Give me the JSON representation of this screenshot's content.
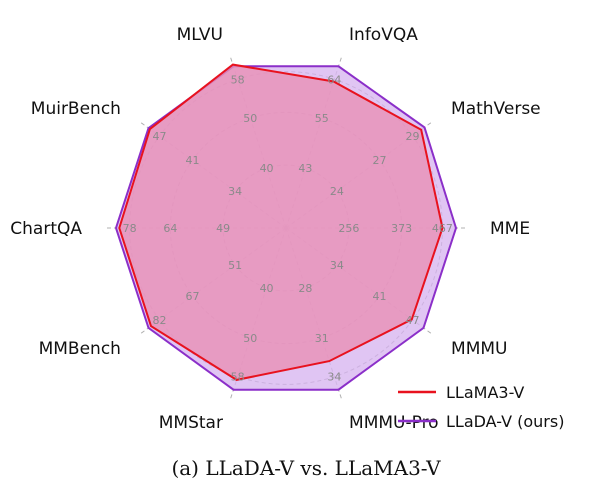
{
  "chart_data": {
    "type": "radar",
    "caption": "(a) LLaDA-V vs. LLaMA3-V",
    "axes": [
      {
        "name": "MME",
        "ticks": [
          "256",
          "373",
          "467"
        ],
        "max": 467
      },
      {
        "name": "MathVerse",
        "ticks": [
          "24",
          "27",
          "29"
        ],
        "max": 29
      },
      {
        "name": "InfoVQA",
        "ticks": [
          "43",
          "55",
          "64"
        ],
        "max": 64
      },
      {
        "name": "MLVU",
        "ticks": [
          "40",
          "50",
          "58"
        ],
        "max": 58
      },
      {
        "name": "MuirBench",
        "ticks": [
          "34",
          "41",
          "47"
        ],
        "max": 47
      },
      {
        "name": "ChartQA",
        "ticks": [
          "49",
          "64",
          "78"
        ],
        "max": 78
      },
      {
        "name": "MMBench",
        "ticks": [
          "51",
          "67",
          "82"
        ],
        "max": 82
      },
      {
        "name": "MMStar",
        "ticks": [
          "40",
          "50",
          "58"
        ],
        "max": 58
      },
      {
        "name": "MMMU-Pro",
        "ticks": [
          "28",
          "31",
          "34"
        ],
        "max": 34
      },
      {
        "name": "MMMU",
        "ticks": [
          "34",
          "41",
          "47"
        ],
        "max": 47
      }
    ],
    "series": [
      {
        "name": "LLaDA-V (ours)",
        "color": "#8b2fc9",
        "fill": "#d8b6f0",
        "values": [
          467,
          29.2,
          64.0,
          58.0,
          47.0,
          78.0,
          82.0,
          58.0,
          34.0,
          47.0
        ]
      },
      {
        "name": "LLaMA3-V",
        "color": "#e8121e",
        "fill": "#e890b5",
        "values": [
          430,
          28.5,
          58.0,
          58.6,
          46.5,
          76.5,
          80.5,
          54.5,
          28.0,
          43.0
        ]
      }
    ],
    "legend": {
      "position": "bottom-right",
      "order": [
        "LLaMA3-V",
        "LLaDA-V (ours)"
      ]
    },
    "grid": true
  }
}
